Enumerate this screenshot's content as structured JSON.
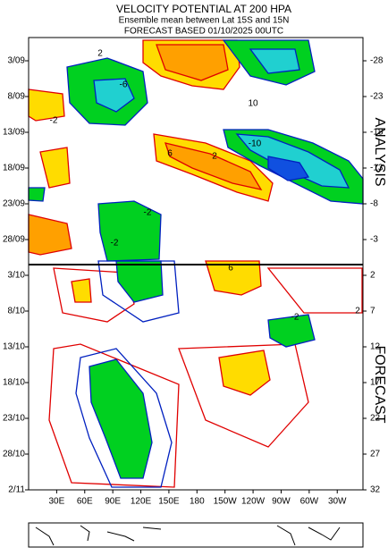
{
  "chart_data": {
    "type": "hovmoller",
    "title": "VELOCITY POTENTIAL AT 200 HPA",
    "subtitle": "Ensemble mean between  Lat 15S and 15N",
    "subtitle2": "FORECAST  BASED 01/10/2025 00UTC",
    "section_labels": [
      "ANALYSIS",
      "FORECAST"
    ],
    "y_categories": [
      "3/09",
      "8/09",
      "13/09",
      "18/09",
      "23/09",
      "28/09",
      "3/10",
      "8/10",
      "13/10",
      "18/10",
      "23/10",
      "28/10",
      "2/11"
    ],
    "y2lim": [
      -31.25,
      32
    ],
    "y2ticks": [
      -28,
      -23,
      -18,
      -13,
      -8,
      -3,
      2,
      7,
      12,
      17,
      22,
      27,
      32
    ],
    "xlim": [
      0,
      357.5
    ],
    "xticks": [
      {
        "value": 30,
        "label": "30E"
      },
      {
        "value": 60,
        "label": "60E"
      },
      {
        "value": 90,
        "label": "90E"
      },
      {
        "value": 120,
        "label": "120E"
      },
      {
        "value": 150,
        "label": "150E"
      },
      180,
      {
        "value": 210,
        "label": "150W"
      },
      {
        "value": 240,
        "label": "120W"
      },
      {
        "value": 270,
        "label": "90W"
      },
      {
        "value": 300,
        "label": "60W"
      },
      {
        "value": 330,
        "label": "30W"
      }
    ],
    "forecast_start": 0.5,
    "contour_labels": [
      2,
      -2,
      6,
      -6,
      10,
      -10,
      2,
      -2,
      6,
      -2,
      2,
      -2
    ]
  }
}
